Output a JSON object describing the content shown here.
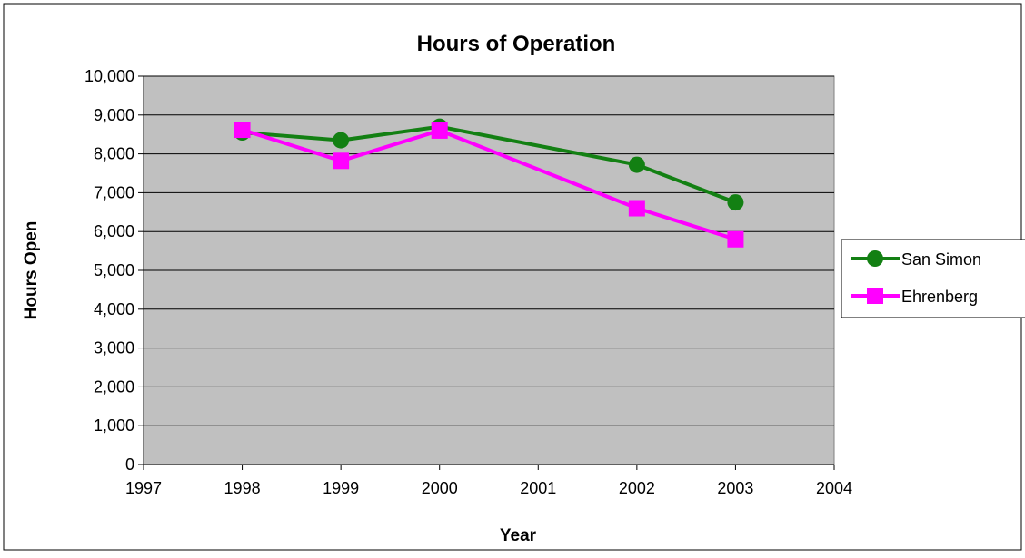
{
  "chart_data": {
    "type": "line",
    "title": "Hours of Operation",
    "x_label": "Year",
    "y_label": "Hours Open",
    "x": [
      1998,
      1999,
      2000,
      2002,
      2003
    ],
    "series": [
      {
        "name": "San Simon",
        "color": "#138013",
        "marker": "circle",
        "values": [
          8550,
          8350,
          8700,
          7720,
          6750
        ]
      },
      {
        "name": "Ehrenberg",
        "color": "#ff00ff",
        "marker": "square",
        "values": [
          8620,
          7820,
          8600,
          6600,
          5800
        ]
      }
    ],
    "xlim": [
      1997,
      2004
    ],
    "xticks": [
      1997,
      1998,
      1999,
      2000,
      2001,
      2002,
      2003,
      2004
    ],
    "ylim": [
      0,
      10000
    ],
    "yticks": [
      0,
      {
        "value": 1000,
        "label": "1,000"
      },
      {
        "value": 2000,
        "label": "2,000"
      },
      {
        "value": 3000,
        "label": "3,000"
      },
      {
        "value": 4000,
        "label": "4,000"
      },
      {
        "value": 5000,
        "label": "5,000"
      },
      {
        "value": 6000,
        "label": "6,000"
      },
      {
        "value": 7000,
        "label": "7,000"
      },
      {
        "value": 8000,
        "label": "8,000"
      },
      {
        "value": 9000,
        "label": "9,000"
      },
      {
        "value": 10000,
        "label": "10,000"
      }
    ],
    "grid": true,
    "legend": "right",
    "plot_background": "#c0c0c0"
  }
}
